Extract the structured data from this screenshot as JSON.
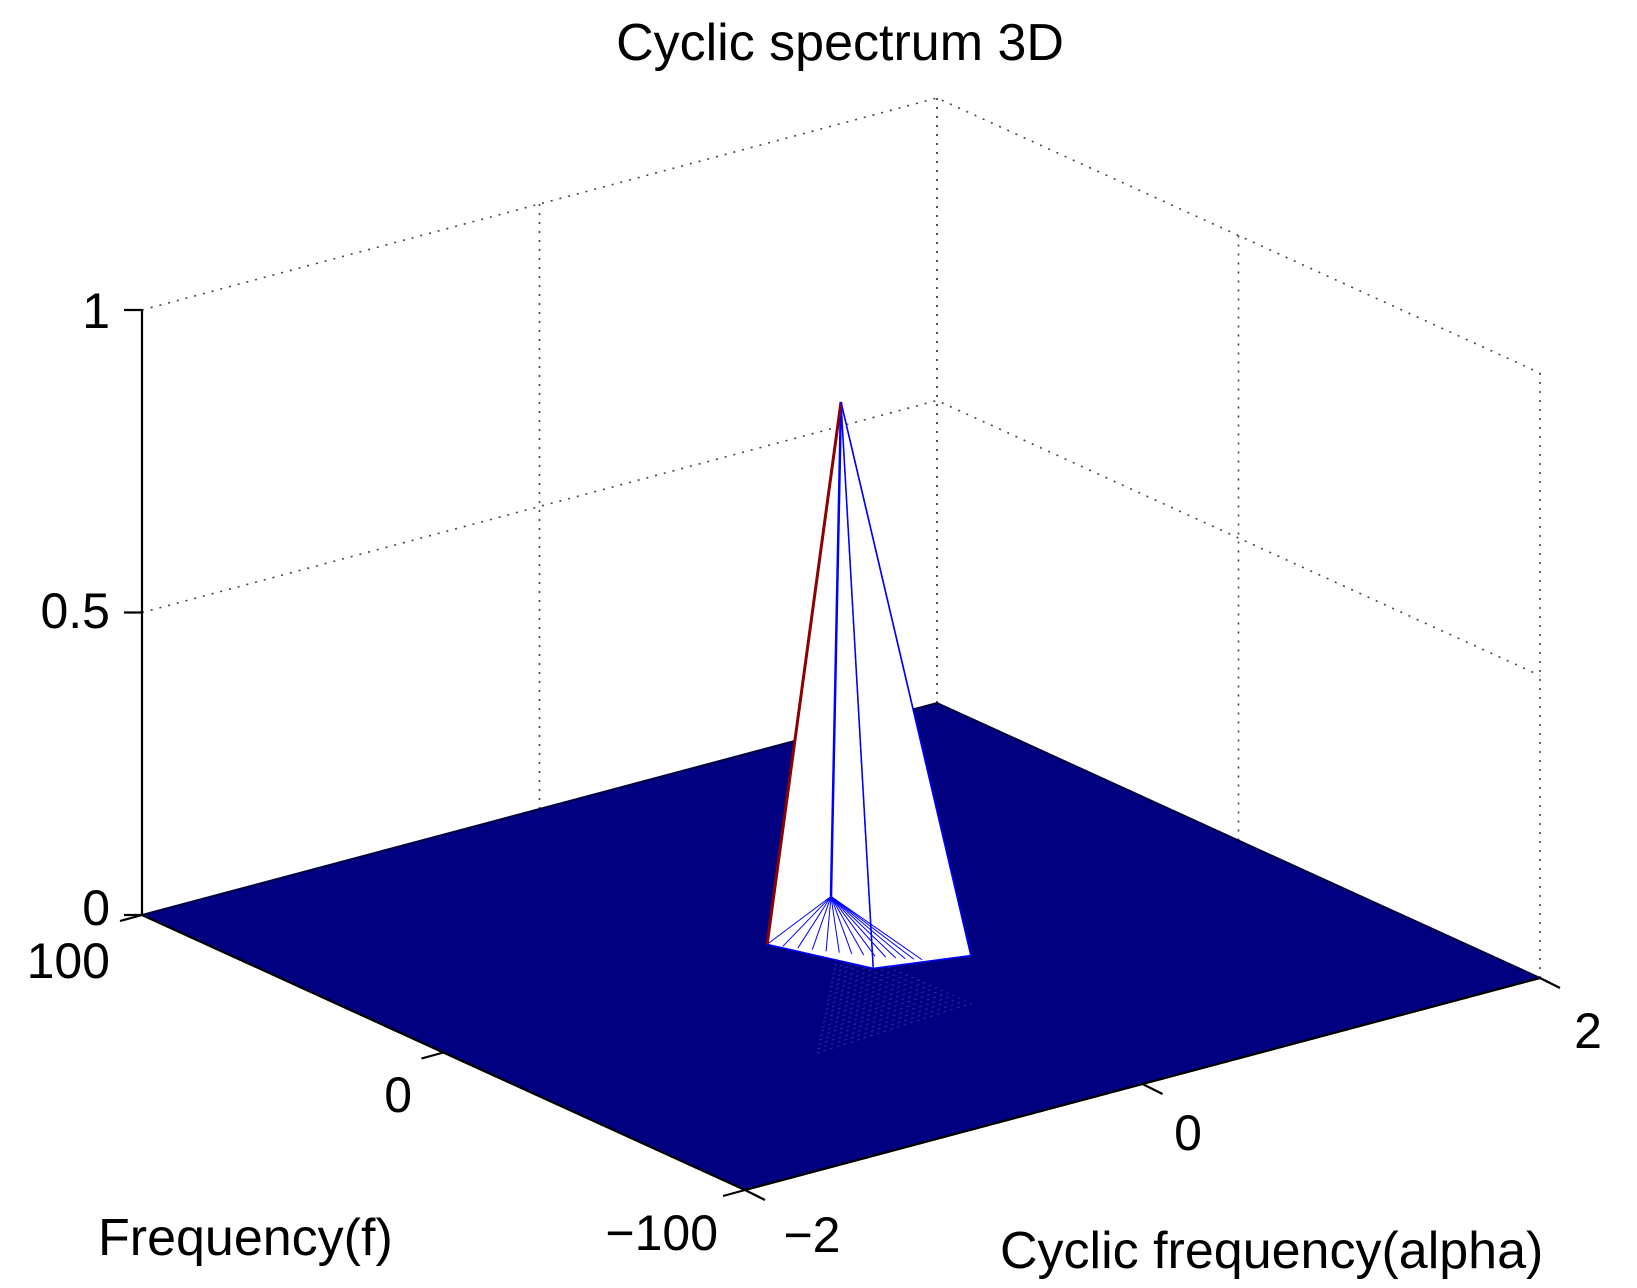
{
  "chart_data": {
    "type": "surface3d",
    "title": "Cyclic spectrum 3D",
    "xlabel": "Cyclic frequency(alpha)",
    "ylabel": "Frequency(f)",
    "zlabel": "",
    "xlim": [
      -2,
      2
    ],
    "ylim": [
      -100,
      100
    ],
    "zlim": [
      0,
      1
    ],
    "x_ticks": [
      "−2",
      "0",
      "2"
    ],
    "y_ticks": [
      "−100",
      "0",
      "100"
    ],
    "z_ticks": [
      "0",
      "0.5",
      "1"
    ],
    "x_tick_values": [
      -2,
      0,
      2
    ],
    "y_tick_values": [
      -100,
      0,
      100
    ],
    "z_tick_values": [
      0,
      0.5,
      1
    ],
    "grid": true,
    "surface_color": "#000080",
    "peak": {
      "alpha": 0,
      "f": 0,
      "value": 0.9
    },
    "base_value": 0
  },
  "colors": {
    "surface": "#000080",
    "peak_face": "#ffffff",
    "peak_edge": "#0000ff",
    "peak_edge_dark": "#8b0000",
    "axis": "#000000",
    "grid": "#444444"
  }
}
